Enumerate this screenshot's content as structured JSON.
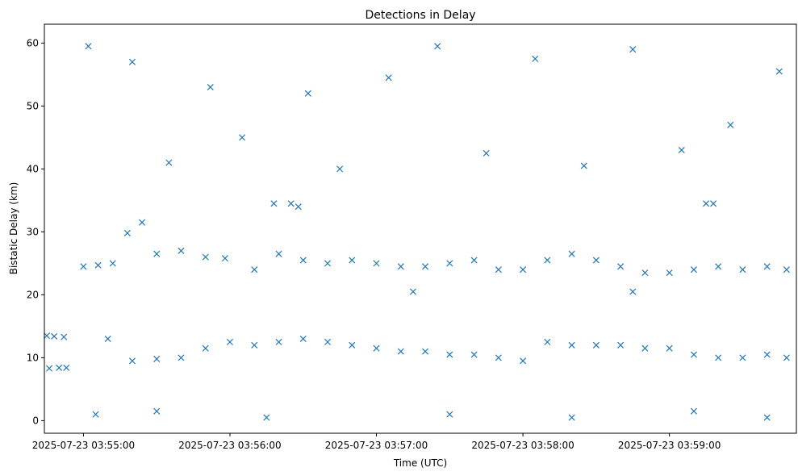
{
  "chart_data": {
    "type": "scatter",
    "title": "Detections in Delay",
    "xlabel": "Time (UTC)",
    "ylabel": "Bistatic Delay (km)",
    "marker": "x",
    "color": "#1f77b4",
    "grid": false,
    "x_axis": {
      "kind": "time",
      "range": [
        "2025-07-23 03:54:44",
        "2025-07-23 03:59:52"
      ],
      "ticks": [
        "2025-07-23 03:55:00",
        "2025-07-23 03:56:00",
        "2025-07-23 03:57:00",
        "2025-07-23 03:58:00",
        "2025-07-23 03:59:00"
      ]
    },
    "y_axis": {
      "range": [
        -2,
        63
      ],
      "ticks": [
        0,
        10,
        20,
        30,
        40,
        50,
        60
      ]
    },
    "series": [
      {
        "points": [
          [
            "2025-07-23 03:54:45",
            13.5
          ],
          [
            "2025-07-23 03:54:46",
            8.3
          ],
          [
            "2025-07-23 03:54:48",
            13.4
          ],
          [
            "2025-07-23 03:54:50",
            8.4
          ],
          [
            "2025-07-23 03:54:52",
            13.3
          ],
          [
            "2025-07-23 03:54:53",
            8.4
          ],
          [
            "2025-07-23 03:55:00",
            24.5
          ],
          [
            "2025-07-23 03:55:06",
            24.7
          ],
          [
            "2025-07-23 03:55:12",
            25.0
          ],
          [
            "2025-07-23 03:55:18",
            29.8
          ],
          [
            "2025-07-23 03:55:24",
            31.5
          ],
          [
            "2025-07-23 03:55:30",
            26.5
          ],
          [
            "2025-07-23 03:55:40",
            27.0
          ],
          [
            "2025-07-23 03:55:50",
            26.0
          ],
          [
            "2025-07-23 03:55:58",
            25.8
          ],
          [
            "2025-07-23 03:56:10",
            24.0
          ],
          [
            "2025-07-23 03:56:20",
            26.5
          ],
          [
            "2025-07-23 03:56:30",
            25.5
          ],
          [
            "2025-07-23 03:56:40",
            25.0
          ],
          [
            "2025-07-23 03:56:50",
            25.5
          ],
          [
            "2025-07-23 03:57:00",
            25.0
          ],
          [
            "2025-07-23 03:57:10",
            24.5
          ],
          [
            "2025-07-23 03:57:20",
            24.5
          ],
          [
            "2025-07-23 03:57:30",
            25.0
          ],
          [
            "2025-07-23 03:57:40",
            25.5
          ],
          [
            "2025-07-23 03:57:50",
            24.0
          ],
          [
            "2025-07-23 03:58:00",
            24.0
          ],
          [
            "2025-07-23 03:58:10",
            25.5
          ],
          [
            "2025-07-23 03:58:20",
            26.5
          ],
          [
            "2025-07-23 03:58:30",
            25.5
          ],
          [
            "2025-07-23 03:58:40",
            24.5
          ],
          [
            "2025-07-23 03:58:50",
            23.5
          ],
          [
            "2025-07-23 03:59:00",
            23.5
          ],
          [
            "2025-07-23 03:59:10",
            24.0
          ],
          [
            "2025-07-23 03:59:20",
            24.5
          ],
          [
            "2025-07-23 03:59:30",
            24.0
          ],
          [
            "2025-07-23 03:59:40",
            24.5
          ],
          [
            "2025-07-23 03:59:48",
            24.0
          ],
          [
            "2025-07-23 03:55:10",
            13.0
          ],
          [
            "2025-07-23 03:55:20",
            9.5
          ],
          [
            "2025-07-23 03:55:30",
            9.8
          ],
          [
            "2025-07-23 03:55:40",
            10.0
          ],
          [
            "2025-07-23 03:55:50",
            11.5
          ],
          [
            "2025-07-23 03:56:00",
            12.5
          ],
          [
            "2025-07-23 03:56:10",
            12.0
          ],
          [
            "2025-07-23 03:56:20",
            12.5
          ],
          [
            "2025-07-23 03:56:30",
            13.0
          ],
          [
            "2025-07-23 03:56:40",
            12.5
          ],
          [
            "2025-07-23 03:56:50",
            12.0
          ],
          [
            "2025-07-23 03:57:00",
            11.5
          ],
          [
            "2025-07-23 03:57:10",
            11.0
          ],
          [
            "2025-07-23 03:57:20",
            11.0
          ],
          [
            "2025-07-23 03:57:30",
            10.5
          ],
          [
            "2025-07-23 03:57:40",
            10.5
          ],
          [
            "2025-07-23 03:57:50",
            10.0
          ],
          [
            "2025-07-23 03:58:00",
            9.5
          ],
          [
            "2025-07-23 03:58:10",
            12.5
          ],
          [
            "2025-07-23 03:58:20",
            12.0
          ],
          [
            "2025-07-23 03:58:30",
            12.0
          ],
          [
            "2025-07-23 03:58:40",
            12.0
          ],
          [
            "2025-07-23 03:58:50",
            11.5
          ],
          [
            "2025-07-23 03:59:00",
            11.5
          ],
          [
            "2025-07-23 03:59:10",
            10.5
          ],
          [
            "2025-07-23 03:59:20",
            10.0
          ],
          [
            "2025-07-23 03:59:30",
            10.0
          ],
          [
            "2025-07-23 03:59:40",
            10.5
          ],
          [
            "2025-07-23 03:59:48",
            10.0
          ],
          [
            "2025-07-23 03:55:02",
            59.5
          ],
          [
            "2025-07-23 03:55:20",
            57.0
          ],
          [
            "2025-07-23 03:55:35",
            41.0
          ],
          [
            "2025-07-23 03:55:52",
            53.0
          ],
          [
            "2025-07-23 03:56:05",
            45.0
          ],
          [
            "2025-07-23 03:56:18",
            34.5
          ],
          [
            "2025-07-23 03:56:32",
            52.0
          ],
          [
            "2025-07-23 03:56:45",
            40.0
          ],
          [
            "2025-07-23 03:57:05",
            54.5
          ],
          [
            "2025-07-23 03:57:25",
            59.5
          ],
          [
            "2025-07-23 03:57:45",
            42.5
          ],
          [
            "2025-07-23 03:58:05",
            57.5
          ],
          [
            "2025-07-23 03:58:25",
            40.5
          ],
          [
            "2025-07-23 03:58:45",
            59.0
          ],
          [
            "2025-07-23 03:59:05",
            43.0
          ],
          [
            "2025-07-23 03:59:25",
            47.0
          ],
          [
            "2025-07-23 03:59:45",
            55.5
          ],
          [
            "2025-07-23 03:55:05",
            1.0
          ],
          [
            "2025-07-23 03:55:30",
            1.5
          ],
          [
            "2025-07-23 03:56:15",
            0.5
          ],
          [
            "2025-07-23 03:57:30",
            1.0
          ],
          [
            "2025-07-23 03:58:20",
            0.5
          ],
          [
            "2025-07-23 03:59:10",
            1.5
          ],
          [
            "2025-07-23 03:59:40",
            0.5
          ],
          [
            "2025-07-23 03:56:25",
            34.5
          ],
          [
            "2025-07-23 03:56:28",
            34.0
          ],
          [
            "2025-07-23 03:59:15",
            34.5
          ],
          [
            "2025-07-23 03:59:18",
            34.5
          ],
          [
            "2025-07-23 03:57:15",
            20.5
          ],
          [
            "2025-07-23 03:58:45",
            20.5
          ]
        ]
      }
    ]
  }
}
